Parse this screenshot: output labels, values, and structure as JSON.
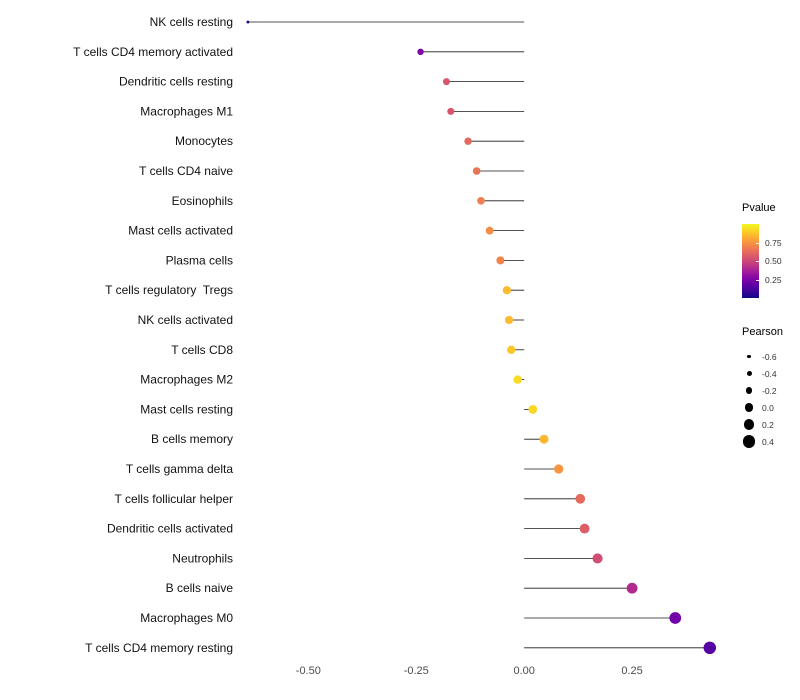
{
  "chart_data": {
    "type": "scatter",
    "subtype": "lollipop",
    "title": "",
    "xlabel": "",
    "ylabel": "",
    "xlim": [
      -0.7,
      0.5
    ],
    "grid": false,
    "x_ticks": [
      -0.5,
      -0.25,
      0.0,
      0.25
    ],
    "x_tick_labels": [
      "-0.50",
      "-0.25",
      "0.00",
      "0.25"
    ],
    "series": [
      {
        "category": "NK cells resting",
        "pearson": -0.64,
        "pvalue": 0.01
      },
      {
        "category": "T cells CD4 memory activated",
        "pearson": -0.24,
        "pvalue": 0.25
      },
      {
        "category": "Dendritic cells resting",
        "pearson": -0.18,
        "pvalue": 0.55
      },
      {
        "category": "Macrophages M1",
        "pearson": -0.17,
        "pvalue": 0.55
      },
      {
        "category": "Monocytes",
        "pearson": -0.13,
        "pvalue": 0.62
      },
      {
        "category": "T cells CD4 naive",
        "pearson": -0.11,
        "pvalue": 0.65
      },
      {
        "category": "Eosinophils",
        "pearson": -0.1,
        "pvalue": 0.68
      },
      {
        "category": "Mast cells activated",
        "pearson": -0.08,
        "pvalue": 0.72
      },
      {
        "category": "Plasma cells",
        "pearson": -0.055,
        "pvalue": 0.7
      },
      {
        "category": "T cells regulatory  Tregs",
        "pearson": -0.04,
        "pvalue": 0.85
      },
      {
        "category": "NK cells activated",
        "pearson": -0.035,
        "pvalue": 0.85
      },
      {
        "category": "T cells CD8",
        "pearson": -0.03,
        "pvalue": 0.88
      },
      {
        "category": "Macrophages M2",
        "pearson": -0.015,
        "pvalue": 0.93
      },
      {
        "category": "Mast cells resting",
        "pearson": 0.02,
        "pvalue": 0.92
      },
      {
        "category": "B cells memory",
        "pearson": 0.046,
        "pvalue": 0.84
      },
      {
        "category": "T cells gamma delta",
        "pearson": 0.08,
        "pvalue": 0.75
      },
      {
        "category": "T cells follicular helper",
        "pearson": 0.13,
        "pvalue": 0.62
      },
      {
        "category": "Dendritic cells activated",
        "pearson": 0.14,
        "pvalue": 0.58
      },
      {
        "category": "Neutrophils",
        "pearson": 0.17,
        "pvalue": 0.52
      },
      {
        "category": "B cells naive",
        "pearson": 0.25,
        "pvalue": 0.4
      },
      {
        "category": "Macrophages M0",
        "pearson": 0.35,
        "pvalue": 0.22
      },
      {
        "category": "T cells CD4 memory resting",
        "pearson": 0.43,
        "pvalue": 0.15
      }
    ],
    "legend": {
      "pvalue": {
        "title": "Pvalue",
        "range": [
          0,
          1
        ],
        "ticks": [
          0.75,
          0.5,
          0.25
        ],
        "tick_labels": [
          "0.75",
          "0.50",
          "0.25"
        ]
      },
      "pearson": {
        "title": "Pearson",
        "sizes": [
          -0.6,
          -0.4,
          -0.2,
          0.0,
          0.2,
          0.4
        ],
        "labels": [
          "-0.6",
          "-0.4",
          "-0.2",
          "0.0",
          "0.2",
          "0.4"
        ]
      }
    },
    "colormap": {
      "name": "plasma",
      "stops": [
        [
          0.0,
          "#0d0887"
        ],
        [
          0.1,
          "#41049d"
        ],
        [
          0.2,
          "#6a00a8"
        ],
        [
          0.3,
          "#8f0da4"
        ],
        [
          0.4,
          "#b12a90"
        ],
        [
          0.5,
          "#cc4778"
        ],
        [
          0.6,
          "#e16462"
        ],
        [
          0.7,
          "#f2844b"
        ],
        [
          0.8,
          "#fca636"
        ],
        [
          0.9,
          "#fcce25"
        ],
        [
          1.0,
          "#f0f921"
        ]
      ]
    },
    "style": {
      "stem_color": "#1a1a1a",
      "axis_text_color": "#4d4d4d",
      "label_color": "#111111",
      "background": "#ffffff"
    }
  }
}
